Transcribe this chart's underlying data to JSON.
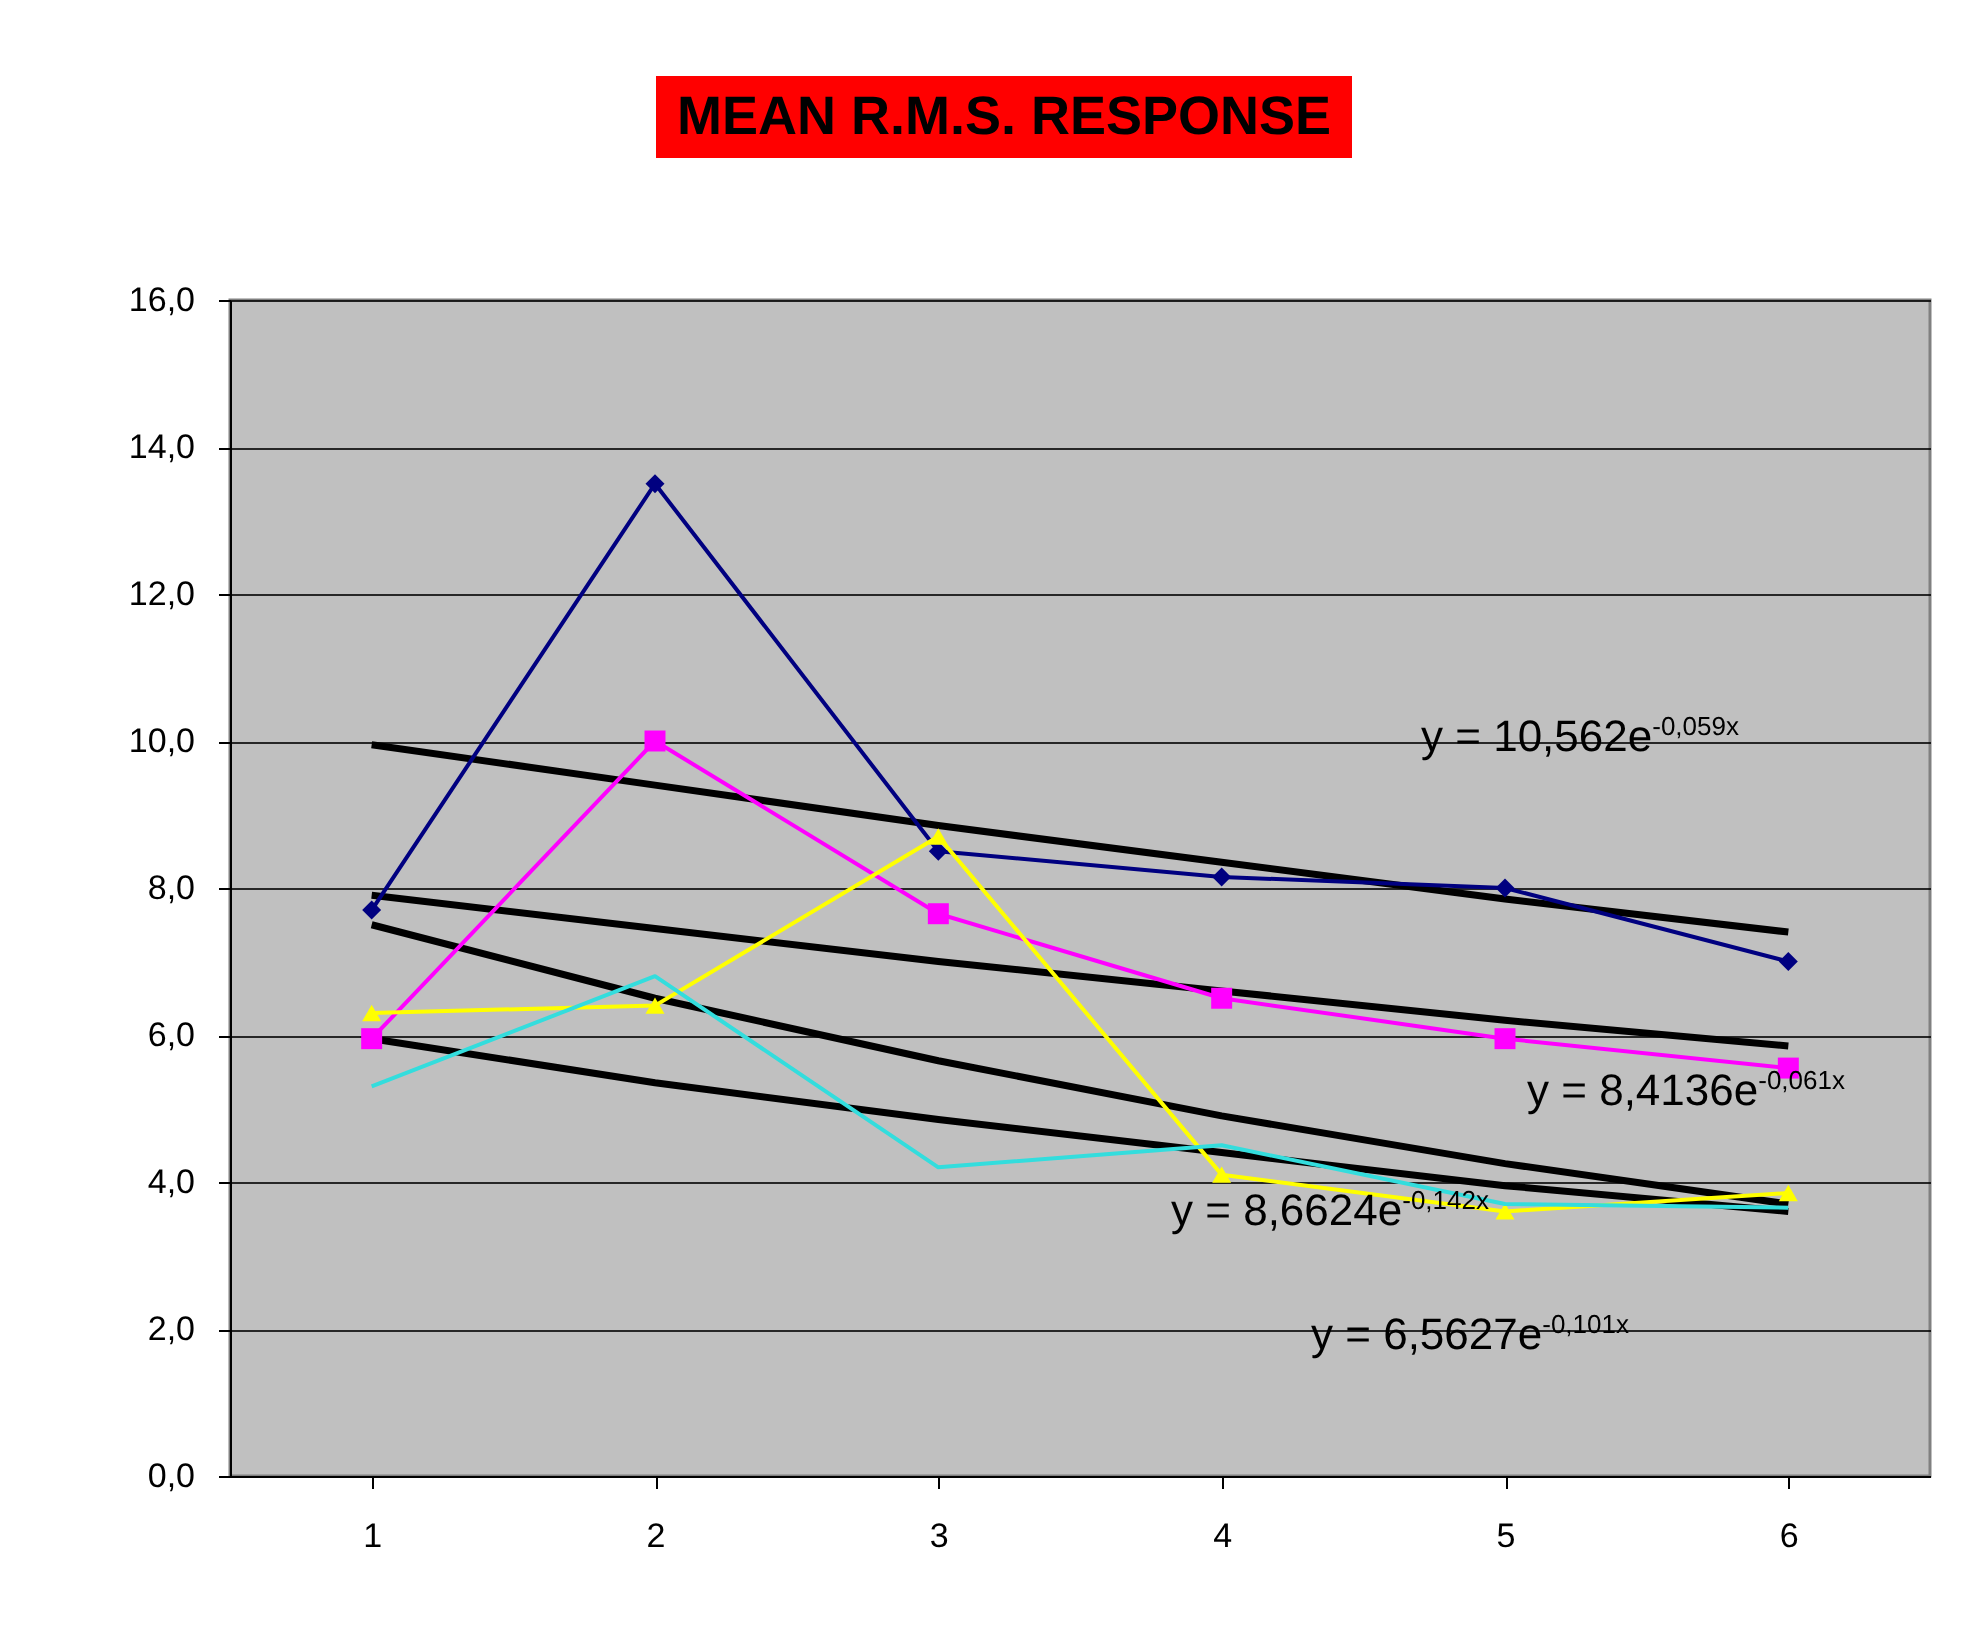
{
  "chart_data": {
    "type": "line",
    "title": "MEAN R.M.S. RESPONSE",
    "categories": [
      "1",
      "2",
      "3",
      "4",
      "5",
      "6"
    ],
    "ylim": [
      0,
      16
    ],
    "yticks": [
      {
        "value": 0,
        "label": "0,0"
      },
      {
        "value": 2,
        "label": "2,0"
      },
      {
        "value": 4,
        "label": "4,0"
      },
      {
        "value": 6,
        "label": "6,0"
      },
      {
        "value": 8,
        "label": "8,0"
      },
      {
        "value": 10,
        "label": "10,0"
      },
      {
        "value": 12,
        "label": "12,0"
      },
      {
        "value": 14,
        "label": "14,0"
      },
      {
        "value": 16,
        "label": "16,0"
      }
    ],
    "grid": "y",
    "series": [
      {
        "color": "#000080",
        "marker": "diamond",
        "values": [
          7.7,
          13.5,
          8.5,
          8.15,
          8.0,
          7.0
        ]
      },
      {
        "color": "#ff00ff",
        "marker": "square",
        "values": [
          5.95,
          10.0,
          7.65,
          6.5,
          5.95,
          5.55
        ]
      },
      {
        "color": "#ffff00",
        "marker": "triangle",
        "values": [
          6.3,
          6.4,
          8.7,
          4.1,
          3.6,
          3.85
        ]
      },
      {
        "color": "#33dddd",
        "marker": "none",
        "values": [
          5.3,
          6.8,
          4.2,
          4.5,
          3.7,
          3.65
        ]
      },
      {
        "color": "#000000",
        "marker": "none",
        "x": [
          "1",
          "2",
          "3",
          "4",
          "5",
          "6"
        ],
        "values": [
          9.95,
          9.4,
          8.85,
          8.35,
          7.85,
          7.4
        ]
      },
      {
        "color": "#000000",
        "marker": "none",
        "x": [
          "1",
          "2",
          "3",
          "4",
          "5",
          "6"
        ],
        "values": [
          7.9,
          7.45,
          7.0,
          6.6,
          6.2,
          5.85
        ]
      },
      {
        "color": "#000000",
        "marker": "none",
        "x": [
          "1",
          "2",
          "3",
          "4",
          "5",
          "6"
        ],
        "values": [
          7.5,
          6.5,
          5.65,
          4.9,
          4.25,
          3.7
        ]
      },
      {
        "color": "#000000",
        "marker": "none",
        "x": [
          "1",
          "2",
          "3",
          "4",
          "5",
          "6"
        ],
        "values": [
          5.95,
          5.35,
          4.85,
          4.4,
          3.95,
          3.6
        ]
      }
    ],
    "annotations": [
      "y = 10,562e$^{-0,059x}$",
      "y = 8,4136e$^{-0,061x}$",
      "y = 8,6624e$^{-0,142x}$",
      "y = 6,5627e$^{-0,101x}$"
    ]
  }
}
